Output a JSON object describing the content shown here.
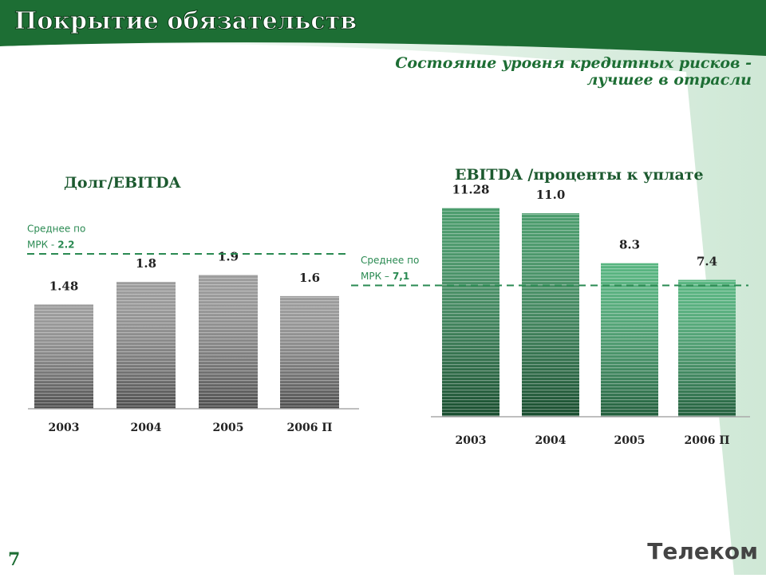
{
  "slide": {
    "title": "Покрытие обязательств",
    "subtitle": [
      "Состояние уровня кредитных рисков -",
      "лучшее в отрасли"
    ],
    "page_number": "7",
    "logo": "Телеком"
  },
  "chart_data": [
    {
      "type": "bar",
      "title": "Долг/EBITDA",
      "categories": [
        "2003",
        "2004",
        "2005",
        "2006 П"
      ],
      "values": [
        1.48,
        1.8,
        1.9,
        1.6
      ],
      "colors": [
        "#8a8a8a",
        "#8a8a8a",
        "#8a8a8a",
        "#8a8a8a"
      ],
      "ylim": [
        0,
        2.5
      ],
      "reference": {
        "label": [
          "Среднее по",
          "МРК -"
        ],
        "value": 2.2
      }
    },
    {
      "type": "bar",
      "title": "EBITDA /проценты к уплате",
      "categories": [
        "2003",
        "2004",
        "2005",
        "2006 П"
      ],
      "values": [
        11.28,
        11.0,
        8.3,
        7.4
      ],
      "value_labels": [
        "11.28",
        "11.0",
        "8.3",
        "7.4"
      ],
      "colors": [
        "#2a8a52",
        "#2a8a52",
        "#3aa86a",
        "#3aa86a"
      ],
      "ylim": [
        0,
        12
      ],
      "reference": {
        "label": [
          "Среднее по",
          "МРК –"
        ],
        "value": 7.1,
        "value_label": "7,1"
      }
    }
  ]
}
